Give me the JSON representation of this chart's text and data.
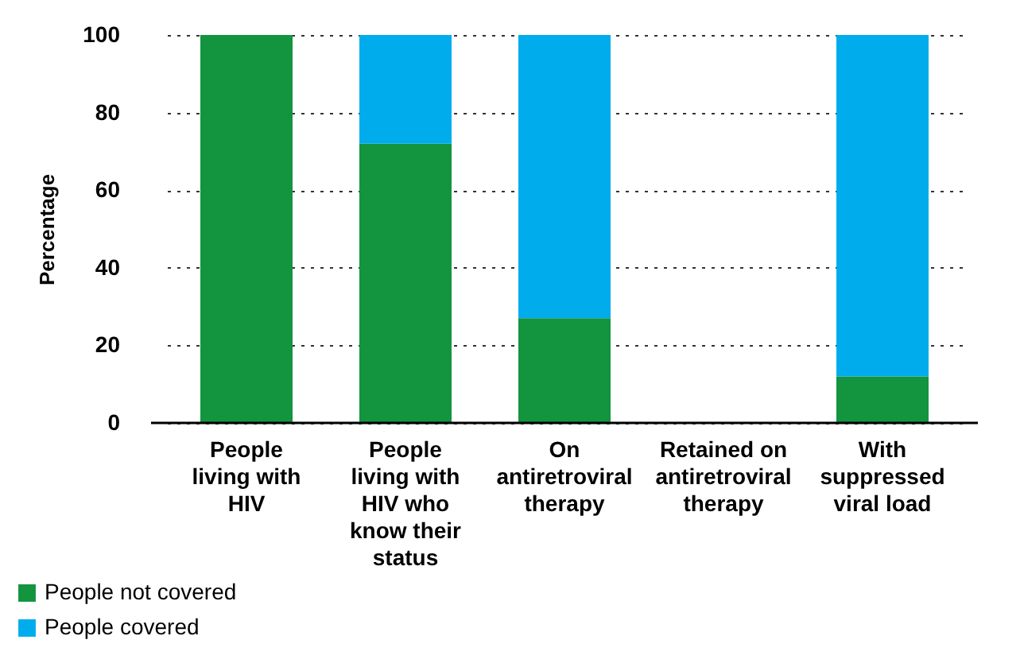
{
  "chart_data": {
    "type": "bar",
    "stacked": true,
    "ylabel": "Percentage",
    "categories": [
      "People living with HIV",
      "People living with HIV who know their status",
      "On antiretroviral therapy",
      "Retained on antiretroviral therapy",
      "With suppressed viral load"
    ],
    "series": [
      {
        "name": "People not covered",
        "color": "#13943f",
        "values": [
          100,
          72,
          27,
          null,
          12
        ]
      },
      {
        "name": "People covered",
        "color": "#00acec",
        "values": [
          null,
          28,
          73,
          null,
          88
        ]
      }
    ],
    "ylim": [
      0,
      100
    ],
    "yticks": [
      0,
      20,
      40,
      60,
      80,
      100
    ],
    "grid": "y",
    "legend": "bottom left"
  }
}
